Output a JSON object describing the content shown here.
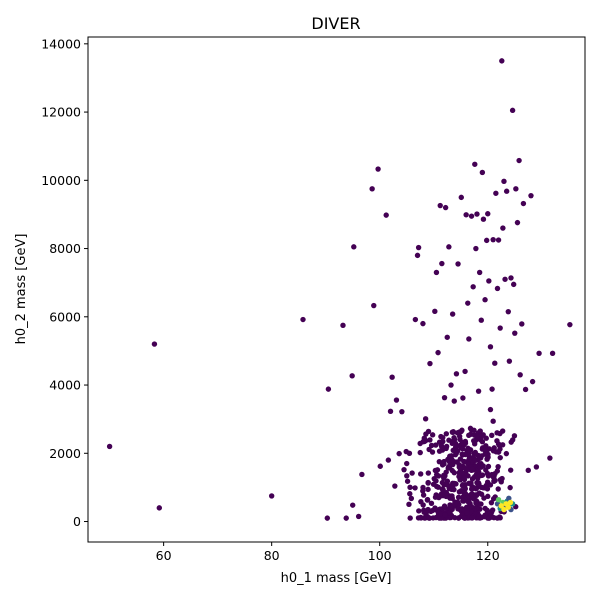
{
  "chart_data": {
    "type": "scatter",
    "title": "DIVER",
    "xlabel": "h0_1 mass [GeV]",
    "ylabel": "h0_2 mass [GeV]",
    "xlim": [
      46,
      138
    ],
    "ylim": [
      -600,
      14200
    ],
    "xticks": [
      60,
      80,
      100,
      120
    ],
    "yticks": [
      0,
      2000,
      4000,
      6000,
      8000,
      10000,
      12000,
      14000
    ],
    "grid": false,
    "legend": "none",
    "colors": {
      "low": "#440154",
      "mid1": "#3b528b",
      "mid2": "#21918c",
      "mid3": "#5ec962",
      "high": "#fde725"
    },
    "series": [
      {
        "color_level": "low",
        "points": [
          [
            50,
            2200
          ],
          [
            58.3,
            5200
          ],
          [
            59.2,
            400
          ],
          [
            80,
            750
          ],
          [
            85.8,
            5920
          ],
          [
            90.5,
            3880
          ],
          [
            90.3,
            100
          ],
          [
            93.2,
            5750
          ],
          [
            93.8,
            100
          ],
          [
            94.9,
            4270
          ],
          [
            95.2,
            8050
          ],
          [
            95.0,
            480
          ],
          [
            96.1,
            150
          ],
          [
            96.7,
            1380
          ],
          [
            98.6,
            9750
          ],
          [
            98.9,
            6330
          ],
          [
            99.7,
            10330
          ],
          [
            100.1,
            1620
          ],
          [
            101.2,
            8980
          ],
          [
            101.6,
            1800
          ],
          [
            102.0,
            3230
          ],
          [
            102.3,
            4230
          ],
          [
            102.8,
            1040
          ],
          [
            103.1,
            3560
          ],
          [
            103.6,
            1990
          ],
          [
            104.1,
            3220
          ],
          [
            104.5,
            1520
          ],
          [
            105.0,
            1700
          ],
          [
            105.5,
            2000
          ],
          [
            106.0,
            1420
          ],
          [
            106.6,
            5920
          ],
          [
            107.0,
            7800
          ],
          [
            107.2,
            8030
          ],
          [
            107.5,
            2020
          ],
          [
            108.0,
            5800
          ],
          [
            108.5,
            3010
          ],
          [
            109.3,
            4630
          ],
          [
            109.8,
            2540
          ],
          [
            110.2,
            6160
          ],
          [
            110.5,
            7300
          ],
          [
            110.8,
            4950
          ],
          [
            111.2,
            9260
          ],
          [
            111.5,
            7560
          ],
          [
            112.0,
            3630
          ],
          [
            112.2,
            9200
          ],
          [
            112.5,
            5400
          ],
          [
            112.8,
            8050
          ],
          [
            113.2,
            4000
          ],
          [
            113.5,
            6080
          ],
          [
            113.8,
            3530
          ],
          [
            114.2,
            4330
          ],
          [
            114.5,
            7550
          ],
          [
            114.8,
            2500
          ],
          [
            115.1,
            9500
          ],
          [
            115.4,
            3620
          ],
          [
            115.8,
            4400
          ],
          [
            116.0,
            8990
          ],
          [
            116.3,
            6400
          ],
          [
            116.5,
            5350
          ],
          [
            116.8,
            2730
          ],
          [
            117.0,
            8950
          ],
          [
            117.3,
            6880
          ],
          [
            117.6,
            10470
          ],
          [
            117.8,
            8000
          ],
          [
            118.0,
            9010
          ],
          [
            118.3,
            3820
          ],
          [
            118.5,
            7300
          ],
          [
            118.8,
            5900
          ],
          [
            119.0,
            10230
          ],
          [
            119.2,
            8860
          ],
          [
            119.5,
            6500
          ],
          [
            119.8,
            8240
          ],
          [
            120.0,
            9020
          ],
          [
            120.2,
            7050
          ],
          [
            120.5,
            5120
          ],
          [
            120.8,
            3880
          ],
          [
            121.0,
            8260
          ],
          [
            121.3,
            4640
          ],
          [
            121.5,
            9620
          ],
          [
            121.8,
            6830
          ],
          [
            122.0,
            8250
          ],
          [
            122.3,
            5670
          ],
          [
            122.6,
            13500
          ],
          [
            122.8,
            8600
          ],
          [
            123.0,
            9970
          ],
          [
            123.2,
            7100
          ],
          [
            123.5,
            9680
          ],
          [
            123.8,
            6150
          ],
          [
            124.0,
            4700
          ],
          [
            124.3,
            7140
          ],
          [
            124.6,
            12050
          ],
          [
            124.8,
            6950
          ],
          [
            125.0,
            5520
          ],
          [
            125.2,
            9750
          ],
          [
            125.5,
            8760
          ],
          [
            125.8,
            10580
          ],
          [
            126.0,
            4300
          ],
          [
            126.3,
            5790
          ],
          [
            126.6,
            9320
          ],
          [
            127.0,
            3870
          ],
          [
            127.5,
            1500
          ],
          [
            128.0,
            9550
          ],
          [
            128.3,
            4100
          ],
          [
            129.0,
            1600
          ],
          [
            129.5,
            4930
          ],
          [
            131.5,
            1860
          ],
          [
            132.0,
            4930
          ],
          [
            135.2,
            5770
          ],
          [
            120.5,
            3280
          ],
          [
            121.0,
            2940
          ]
        ],
        "cluster": {
          "x_range": [
            103.5,
            127
          ],
          "y_range": [
            100,
            2700
          ],
          "count": 480
        }
      },
      {
        "color_level": "mid",
        "points": [
          [
            121.8,
            520
          ],
          [
            122.3,
            380
          ],
          [
            122.8,
            560
          ],
          [
            123.2,
            440
          ],
          [
            123.6,
            600
          ],
          [
            124.0,
            480
          ],
          [
            124.3,
            350
          ],
          [
            124.6,
            520
          ],
          [
            122.0,
            640
          ],
          [
            123.9,
            680
          ]
        ]
      },
      {
        "color_level": "high",
        "points": [
          [
            122.5,
            460
          ],
          [
            123.0,
            350
          ],
          [
            123.4,
            520
          ],
          [
            123.8,
            420
          ],
          [
            124.2,
            560
          ]
        ]
      }
    ]
  }
}
